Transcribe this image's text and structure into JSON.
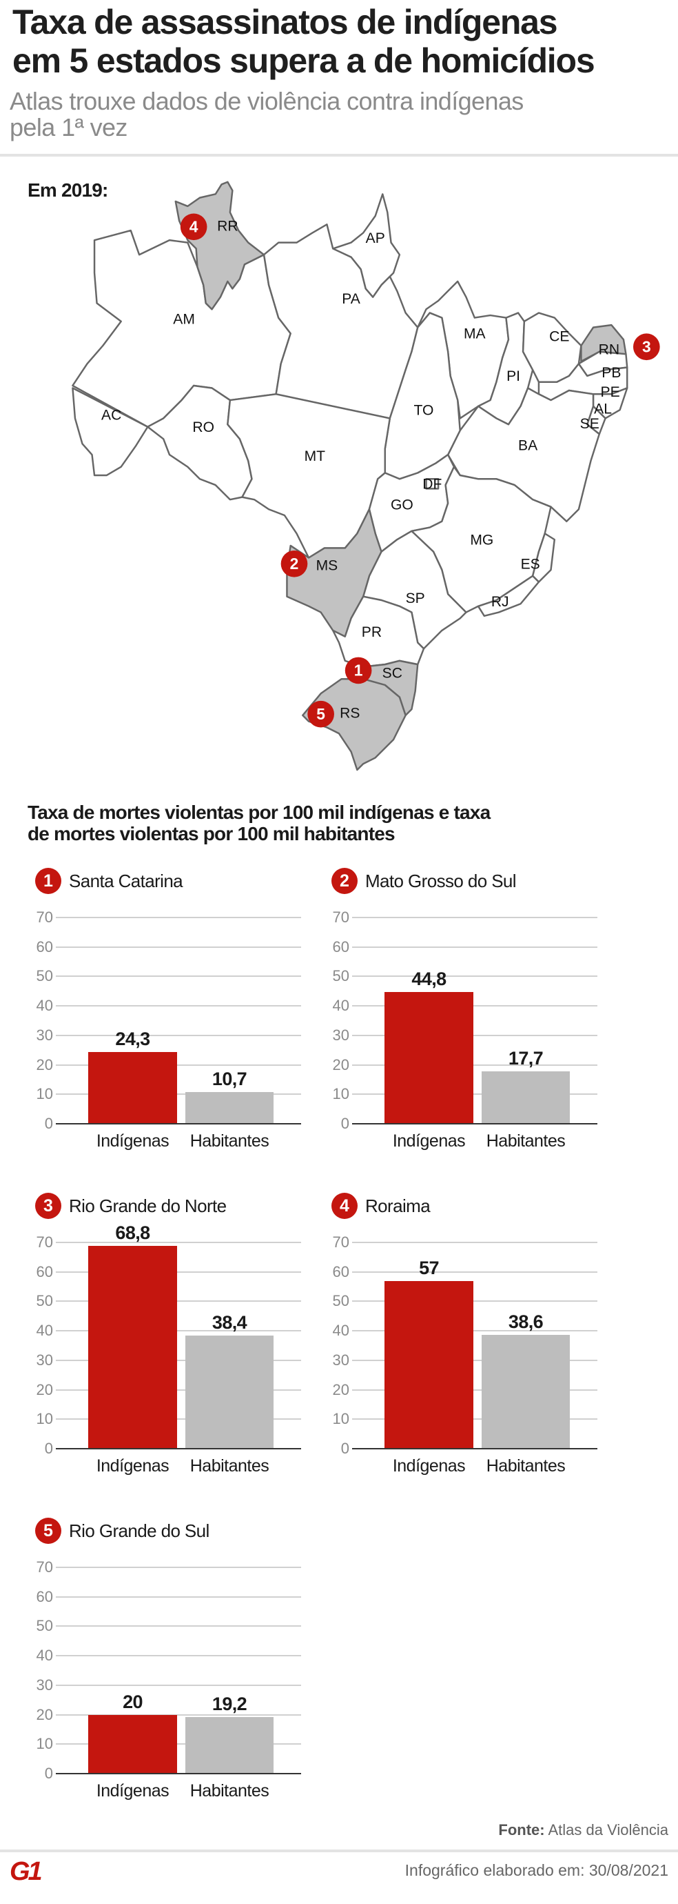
{
  "header": {
    "title_line1": "Taxa de assassinatos de indígenas",
    "title_line2": "em 5 estados supera a de homicídios",
    "subtitle_line1": "Atlas trouxe dados de violência contra indígenas",
    "subtitle_line2": "pela 1ª vez"
  },
  "map": {
    "year_label": "Em 2019:",
    "highlight_color": "#c2c2c2",
    "badge_color": "#c4160f",
    "states": [
      "AC",
      "AM",
      "RR",
      "AP",
      "PA",
      "MA",
      "PI",
      "CE",
      "RN",
      "PB",
      "PE",
      "AL",
      "SE",
      "BA",
      "TO",
      "RO",
      "MT",
      "GO",
      "DF",
      "MG",
      "ES",
      "RJ",
      "SP",
      "MS",
      "PR",
      "SC",
      "RS"
    ],
    "highlighted": [
      {
        "state": "SC",
        "rank": "1"
      },
      {
        "state": "MS",
        "rank": "2"
      },
      {
        "state": "RN",
        "rank": "3"
      },
      {
        "state": "RR",
        "rank": "4"
      },
      {
        "state": "RS",
        "rank": "5"
      }
    ]
  },
  "charts_heading_line1": "Taxa de mortes violentas por 100 mil indígenas e taxa",
  "charts_heading_line2": "de mortes violentas por 100 mil habitantes",
  "chart_data": [
    {
      "type": "bar",
      "rank": "1",
      "title": "Santa Catarina",
      "categories": [
        "Indígenas",
        "Habitantes"
      ],
      "values": [
        24.3,
        10.7
      ],
      "labels": [
        "24,3",
        "10,7"
      ],
      "colors": [
        "#c4160f",
        "#bdbdbd"
      ],
      "ylim": [
        0,
        70
      ],
      "yticks": [
        0,
        10,
        20,
        30,
        40,
        50,
        60,
        70
      ],
      "grid": true
    },
    {
      "type": "bar",
      "rank": "2",
      "title": "Mato Grosso do Sul",
      "categories": [
        "Indígenas",
        "Habitantes"
      ],
      "values": [
        44.8,
        17.7
      ],
      "labels": [
        "44,8",
        "17,7"
      ],
      "colors": [
        "#c4160f",
        "#bdbdbd"
      ],
      "ylim": [
        0,
        70
      ],
      "yticks": [
        0,
        10,
        20,
        30,
        40,
        50,
        60,
        70
      ],
      "grid": true
    },
    {
      "type": "bar",
      "rank": "3",
      "title": "Rio Grande do Norte",
      "categories": [
        "Indígenas",
        "Habitantes"
      ],
      "values": [
        68.8,
        38.4
      ],
      "labels": [
        "68,8",
        "38,4"
      ],
      "colors": [
        "#c4160f",
        "#bdbdbd"
      ],
      "ylim": [
        0,
        70
      ],
      "yticks": [
        0,
        10,
        20,
        30,
        40,
        50,
        60,
        70
      ],
      "grid": true
    },
    {
      "type": "bar",
      "rank": "4",
      "title": "Roraima",
      "categories": [
        "Indígenas",
        "Habitantes"
      ],
      "values": [
        57,
        38.6
      ],
      "labels": [
        "57",
        "38,6"
      ],
      "colors": [
        "#c4160f",
        "#bdbdbd"
      ],
      "ylim": [
        0,
        70
      ],
      "yticks": [
        0,
        10,
        20,
        30,
        40,
        50,
        60,
        70
      ],
      "grid": true
    },
    {
      "type": "bar",
      "rank": "5",
      "title": "Rio Grande do Sul",
      "categories": [
        "Indígenas",
        "Habitantes"
      ],
      "values": [
        20,
        19.2
      ],
      "labels": [
        "20",
        "19,2"
      ],
      "colors": [
        "#c4160f",
        "#bdbdbd"
      ],
      "ylim": [
        0,
        70
      ],
      "yticks": [
        0,
        10,
        20,
        30,
        40,
        50,
        60,
        70
      ],
      "grid": true
    }
  ],
  "footer": {
    "source_label": "Fonte:",
    "source_value": "Atlas da Violência",
    "date_text": "Infográfico elaborado em: 30/08/2021",
    "logo": "G1"
  }
}
